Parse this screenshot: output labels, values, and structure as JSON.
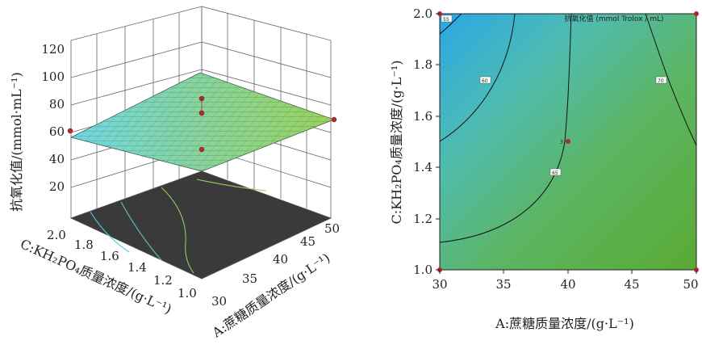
{
  "chart_data": [
    {
      "type": "surface3d",
      "xlabel": "A:蔗糖质量浓度/(g·L⁻¹)",
      "ylabel": "C:KH₂PO₄质量浓度/(g·L⁻¹)",
      "zlabel": "抗氧化值/(mmol·mL⁻¹)",
      "x_ticks": [
        "30",
        "35",
        "40",
        "45",
        "50"
      ],
      "y_ticks": [
        "1.0",
        "1.2",
        "1.4",
        "1.6",
        "1.8",
        "2.0"
      ],
      "z_ticks": [
        "20",
        "40",
        "60",
        "80",
        "100",
        "120"
      ],
      "xlim": [
        30,
        50
      ],
      "ylim": [
        1.0,
        2.0
      ],
      "zlim": [
        20,
        120
      ],
      "surface_corners": [
        {
          "x": 30,
          "y": 1.0,
          "z": 62
        },
        {
          "x": 50,
          "y": 1.0,
          "z": 72
        },
        {
          "x": 30,
          "y": 2.0,
          "z": 54
        },
        {
          "x": 50,
          "y": 2.0,
          "z": 68
        }
      ],
      "design_points": [
        {
          "x": 30,
          "y": 2.0,
          "z": 56
        },
        {
          "x": 50,
          "y": 1.0,
          "z": 68
        },
        {
          "x": 40,
          "y": 1.5,
          "z": 88
        },
        {
          "x": 40,
          "y": 1.5,
          "z": 78
        },
        {
          "x": 40,
          "y": 1.5,
          "z": 52
        }
      ]
    },
    {
      "type": "contour",
      "title": "抗氧化值 (mmol Trolox / mL)",
      "xlabel": "A:蔗糖质量浓度/(g·L⁻¹)",
      "ylabel": "C:KH₂PO₄质量浓度/(g·L⁻¹)",
      "x_ticks": [
        "30",
        "35",
        "40",
        "45",
        "50"
      ],
      "y_ticks": [
        "1.0",
        "1.2",
        "1.4",
        "1.6",
        "1.8",
        "2.0"
      ],
      "xlim": [
        30,
        50
      ],
      "ylim": [
        1.0,
        2.0
      ],
      "contour_levels": [
        "55",
        "60",
        "65",
        "70"
      ],
      "center_label": "3",
      "design_points": [
        {
          "x": 30,
          "y": 1.0
        },
        {
          "x": 50,
          "y": 1.0
        },
        {
          "x": 30,
          "y": 2.0
        },
        {
          "x": 50,
          "y": 2.0
        },
        {
          "x": 40,
          "y": 1.5
        }
      ]
    }
  ]
}
